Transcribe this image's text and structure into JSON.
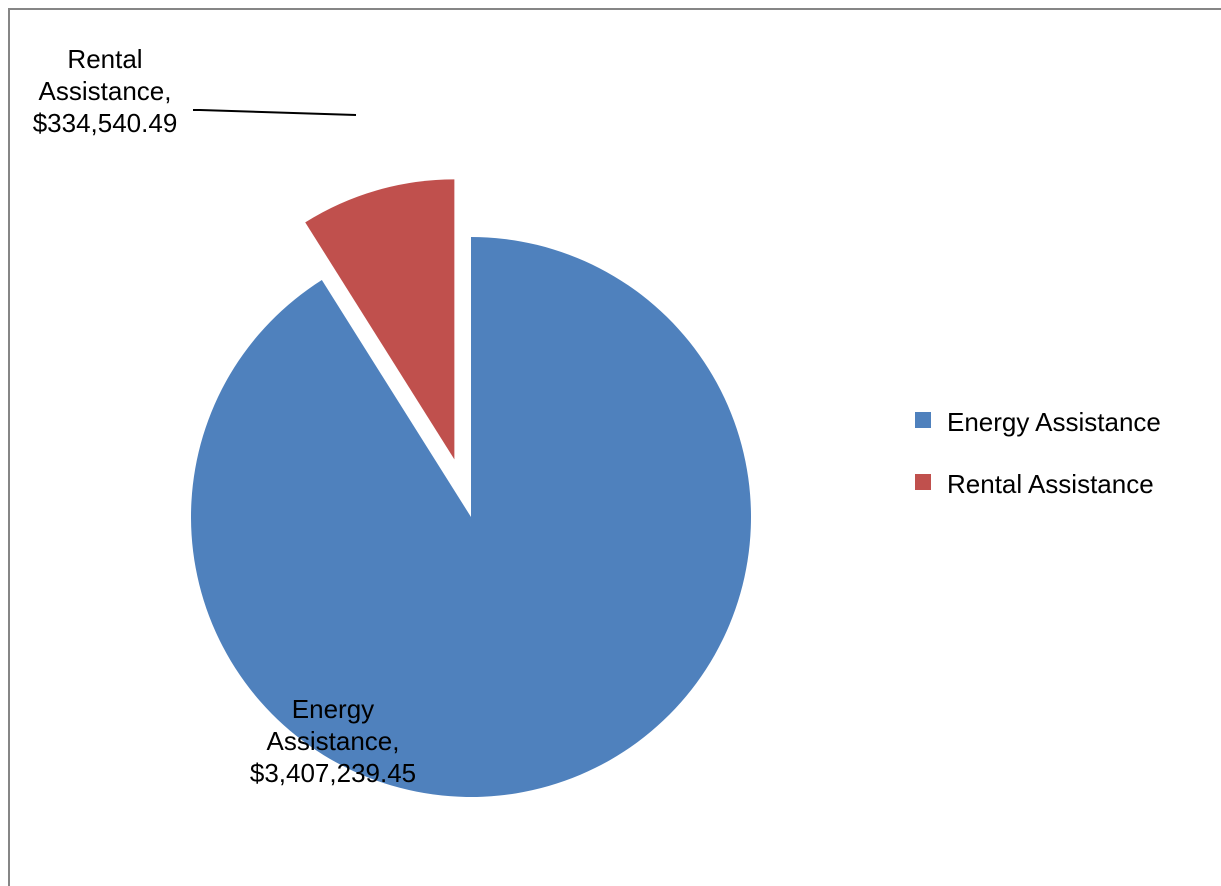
{
  "chart_data": {
    "type": "pie",
    "title": "",
    "start_angle_deg": 0,
    "exploded_slice": "Rental Assistance",
    "legend_position": "right",
    "slices": [
      {
        "name": "Energy Assistance",
        "value": 3407239.45,
        "label_lines": [
          "Energy",
          "Assistance,",
          "$3,407,239.45"
        ],
        "color": "#4F81BD"
      },
      {
        "name": "Rental Assistance",
        "value": 334540.49,
        "label_lines": [
          "Rental",
          "Assistance,",
          "$334,540.49"
        ],
        "color": "#C0504D"
      }
    ],
    "legend": [
      {
        "label": "Energy Assistance",
        "color": "#4F81BD"
      },
      {
        "label": "Rental Assistance",
        "color": "#C0504D"
      }
    ]
  }
}
